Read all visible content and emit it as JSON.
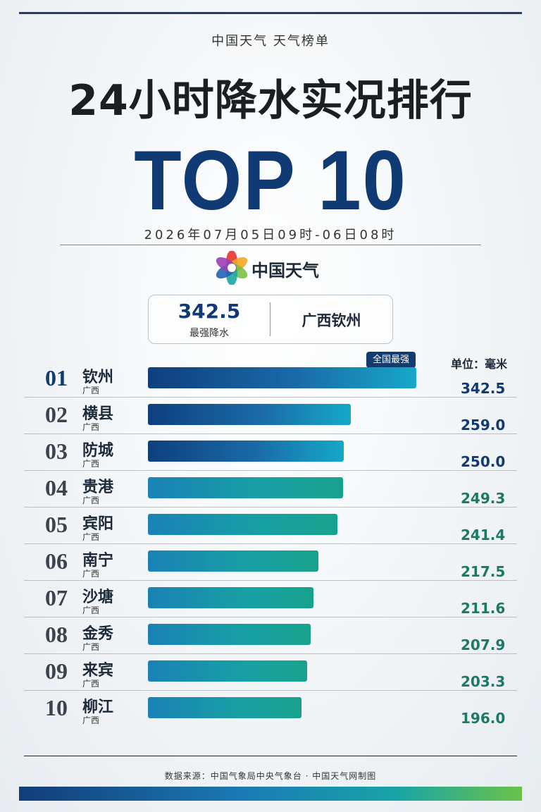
{
  "header": {
    "brand": "中国天气  天气榜单",
    "title": "24小时降水实况排行",
    "top_label": "TOP 10",
    "date_range": "2026年07月05日09时-06日08时",
    "logo_text": "中国天气"
  },
  "summary": {
    "value": "342.5",
    "label": "最强降水",
    "location": "广西钦州"
  },
  "badge": "全国最强",
  "unit_label": "单位：毫米",
  "colors": {
    "navy": "#0f3a74",
    "value_blue": "#0f3a74",
    "value_teal": "#1a7a63"
  },
  "chart_data": {
    "type": "bar",
    "categories": [
      "钦州",
      "横县",
      "防城",
      "贵港",
      "宾阳",
      "南宁",
      "沙塘",
      "金秀",
      "来宾",
      "柳江"
    ],
    "ranks": [
      "01",
      "02",
      "03",
      "04",
      "05",
      "06",
      "07",
      "08",
      "09",
      "10"
    ],
    "provinces": [
      "广西",
      "广西",
      "广西",
      "广西",
      "广西",
      "广西",
      "广西",
      "广西",
      "广西",
      "广西"
    ],
    "values": [
      342.5,
      259.0,
      250.0,
      249.3,
      241.4,
      217.5,
      211.6,
      207.9,
      203.3,
      196.0
    ],
    "value_labels": [
      "342.5",
      "259.0",
      "250.0",
      "249.3",
      "241.4",
      "217.5",
      "211.6",
      "207.9",
      "203.3",
      "196.0"
    ],
    "unit": "毫米",
    "orientation": "horizontal",
    "xlim": [
      0,
      342.5
    ]
  },
  "footer": {
    "source": "数据来源：中国气象局中央气象台  ·  中国天气网制图"
  }
}
